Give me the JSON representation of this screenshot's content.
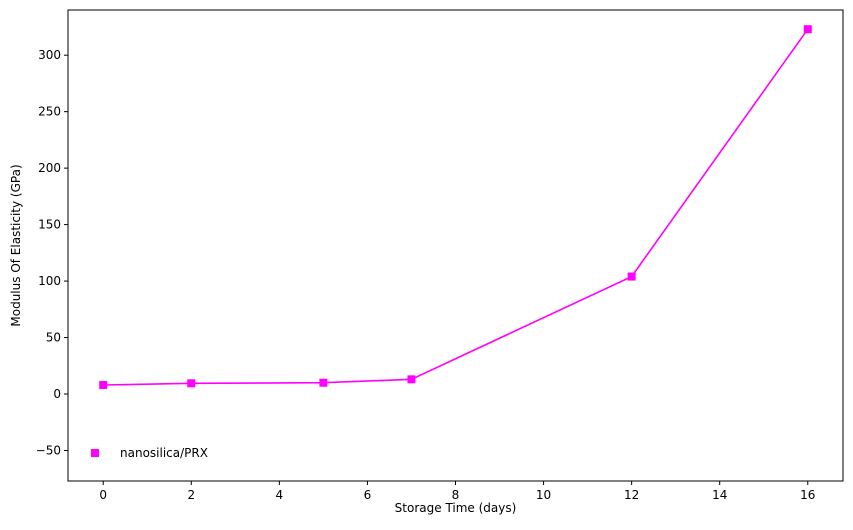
{
  "chart_data": {
    "type": "line",
    "title": "",
    "xlabel": "Storage Time (days)",
    "ylabel": "Modulus Of Elasticity (GPa)",
    "xlim": [
      -0.8,
      16.8
    ],
    "ylim": [
      -77,
      340
    ],
    "xticks": [
      0,
      2,
      4,
      6,
      8,
      10,
      12,
      14,
      16
    ],
    "yticks": [
      -50,
      0,
      50,
      100,
      150,
      200,
      250,
      300
    ],
    "grid": false,
    "legend_position": "lower-left",
    "series": [
      {
        "name": "nanosilica/PRX",
        "color": "#ff00ff",
        "marker": "square",
        "x": [
          0,
          2,
          5,
          7,
          12,
          16
        ],
        "y": [
          8,
          9.5,
          10,
          13,
          104,
          323
        ]
      }
    ]
  }
}
